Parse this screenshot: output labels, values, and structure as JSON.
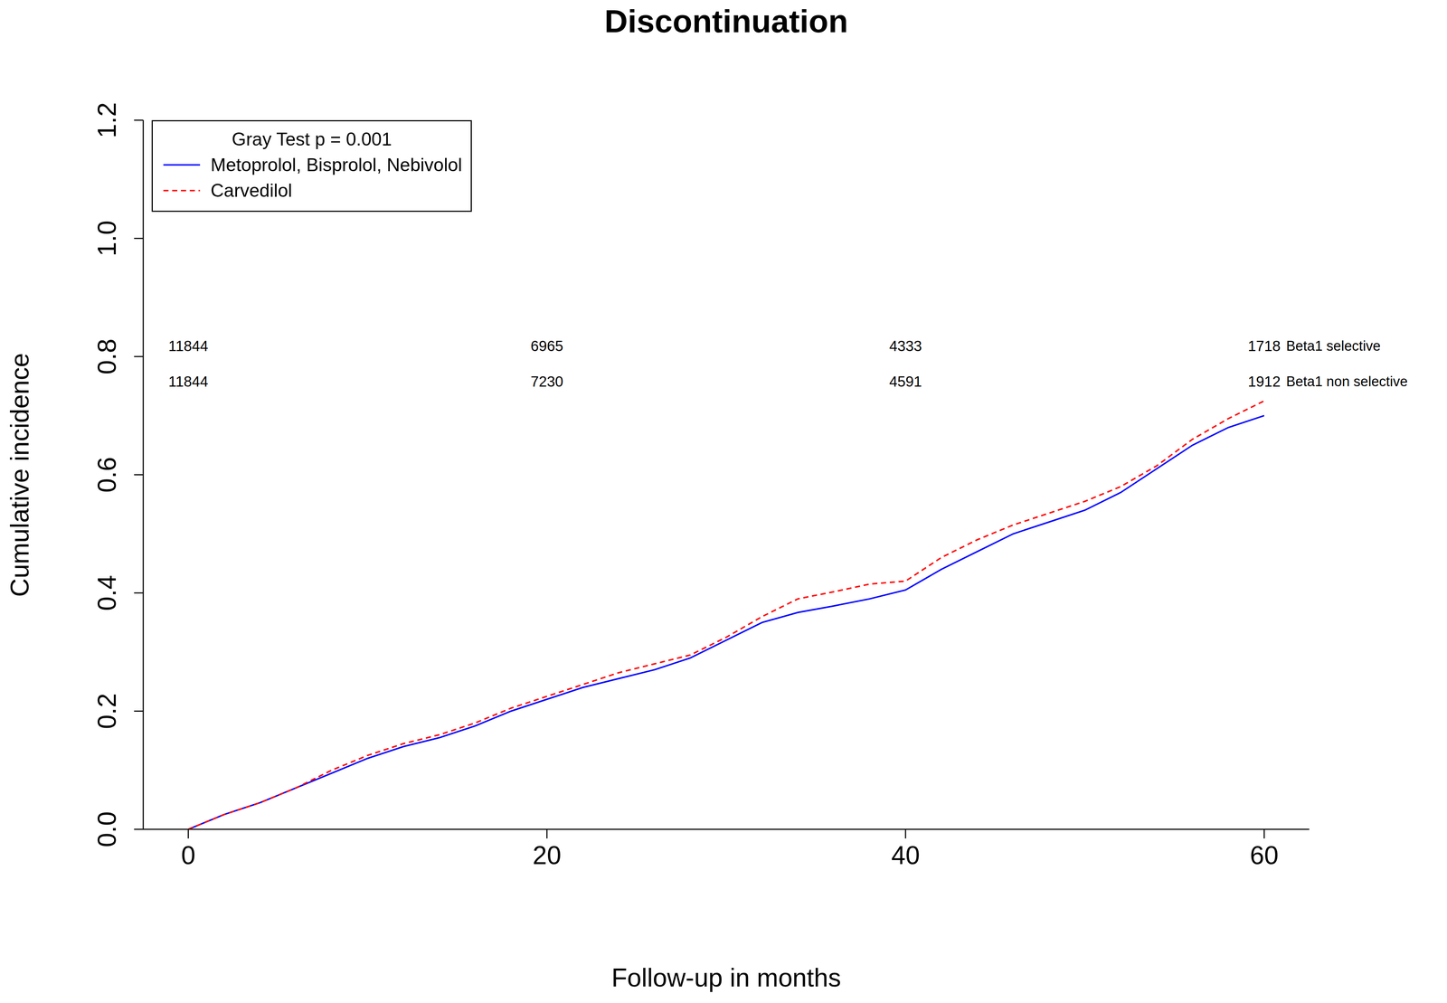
{
  "chart_data": {
    "type": "line",
    "title": "Discontinuation",
    "xlabel": "Follow-up in months",
    "ylabel": "Cumulative incidence",
    "legend": "upper left",
    "legend_title": "Gray Test p = 0.001",
    "x": [
      0,
      2,
      4,
      6,
      8,
      10,
      12,
      14,
      16,
      18,
      20,
      22,
      24,
      26,
      28,
      30,
      32,
      34,
      36,
      38,
      40,
      42,
      44,
      46,
      48,
      50,
      52,
      54,
      56,
      58,
      60
    ],
    "series": [
      {
        "name": "Metoprolol, Bisprolol, Nebivolol",
        "color": "#0000ff",
        "line_style": "solid",
        "values": [
          0,
          0.025,
          0.045,
          0.07,
          0.095,
          0.12,
          0.14,
          0.155,
          0.175,
          0.2,
          0.22,
          0.24,
          0.255,
          0.27,
          0.29,
          0.32,
          0.35,
          0.367,
          0.378,
          0.39,
          0.405,
          0.44,
          0.47,
          0.5,
          0.52,
          0.54,
          0.57,
          0.61,
          0.65,
          0.68,
          0.7
        ]
      },
      {
        "name": "Carvedilol",
        "color": "#ff0000",
        "line_style": "dashed",
        "values": [
          0,
          0.025,
          0.045,
          0.07,
          0.1,
          0.125,
          0.145,
          0.16,
          0.18,
          0.205,
          0.225,
          0.245,
          0.265,
          0.28,
          0.295,
          0.325,
          0.36,
          0.39,
          0.402,
          0.415,
          0.42,
          0.46,
          0.49,
          0.515,
          0.535,
          0.555,
          0.58,
          0.615,
          0.66,
          0.695,
          0.725
        ]
      }
    ],
    "xlim": [
      0,
      60
    ],
    "xticks": [
      0,
      20,
      40,
      60
    ],
    "ylim": [
      0,
      1.2
    ],
    "yticks": [
      {
        "value": 0,
        "label": "0.0"
      },
      0.2,
      0.4,
      0.6,
      0.8,
      {
        "value": 1,
        "label": "1.0"
      },
      1.2
    ],
    "grid": false,
    "risk_table": {
      "x": [
        0,
        20,
        40,
        60
      ],
      "rows": [
        {
          "label": "Beta1 selective",
          "values": [
            11844,
            6965,
            4333,
            1718
          ]
        },
        {
          "label": "Beta1 non selective",
          "values": [
            11844,
            7230,
            4591,
            1912
          ]
        }
      ]
    }
  }
}
